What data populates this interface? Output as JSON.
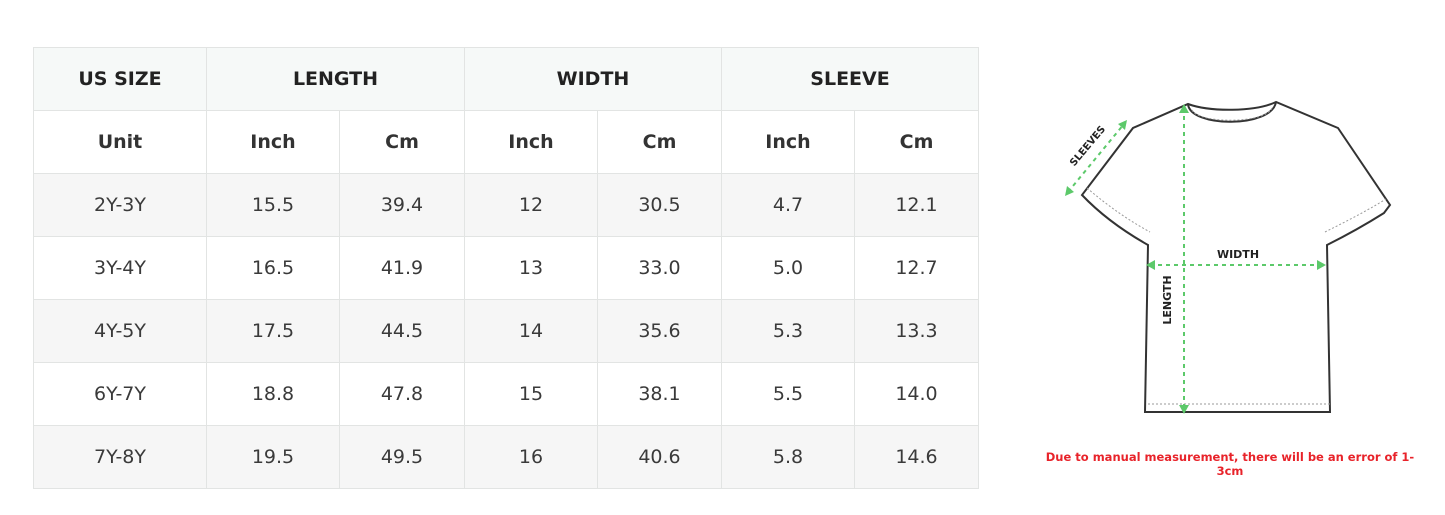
{
  "table": {
    "groups": [
      "US SIZE",
      "LENGTH",
      "WIDTH",
      "SLEEVE"
    ],
    "units": [
      "Unit",
      "Inch",
      "Cm",
      "Inch",
      "Cm",
      "Inch",
      "Cm"
    ],
    "rows": [
      [
        "2Y-3Y",
        "15.5",
        "39.4",
        "12",
        "30.5",
        "4.7",
        "12.1"
      ],
      [
        "3Y-4Y",
        "16.5",
        "41.9",
        "13",
        "33.0",
        "5.0",
        "12.7"
      ],
      [
        "4Y-5Y",
        "17.5",
        "44.5",
        "14",
        "35.6",
        "5.3",
        "13.3"
      ],
      [
        "6Y-7Y",
        "18.8",
        "47.8",
        "15",
        "38.1",
        "5.5",
        "14.0"
      ],
      [
        "7Y-8Y",
        "19.5",
        "49.5",
        "16",
        "40.6",
        "5.8",
        "14.6"
      ]
    ]
  },
  "diagram": {
    "sleeves": "SLEEVES",
    "width": "WIDTH",
    "length": "LENGTH",
    "note": "Due to manual measurement, there will be an error of 1-3cm"
  }
}
